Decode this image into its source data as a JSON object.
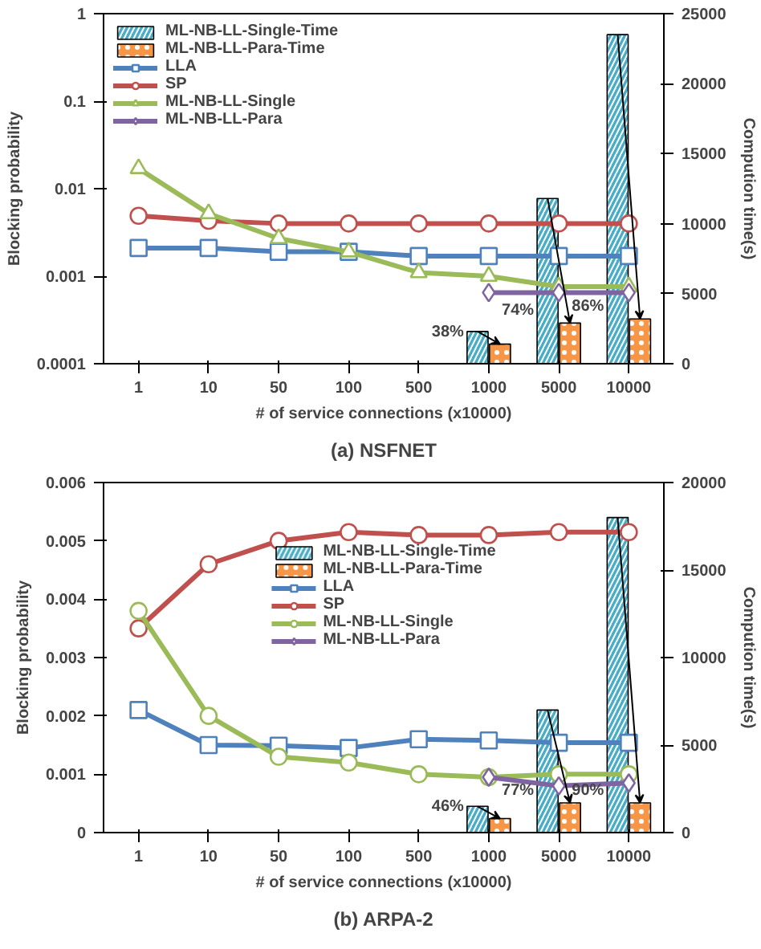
{
  "chart_data": [
    {
      "type": "line",
      "title": "(a) NSFNET",
      "xlabel": "# of service connections (x10000)",
      "ylabel": "Blocking probability",
      "y2label": "Compution time(s)",
      "categories": [
        "1",
        "10",
        "50",
        "100",
        "500",
        "1000",
        "5000",
        "10000"
      ],
      "log": "y",
      "ylim": [
        0.0001,
        1
      ],
      "yticks": [
        0.0001,
        0.001,
        0.01,
        0.1,
        1
      ],
      "y2lim": [
        0,
        25000
      ],
      "y2ticks": [
        0,
        5000,
        10000,
        15000,
        20000,
        25000
      ],
      "legend": "top left",
      "series": [
        {
          "name": "ML-NB-LL-Single-Time",
          "type": "bar",
          "axis": "y2",
          "color": "#4bacc6",
          "values": [
            null,
            null,
            null,
            null,
            null,
            2300,
            11800,
            23500
          ]
        },
        {
          "name": "ML-NB-LL-Para-Time",
          "type": "bar",
          "axis": "y2",
          "color": "#f79646",
          "values": [
            null,
            null,
            null,
            null,
            null,
            1400,
            2900,
            3200
          ]
        },
        {
          "name": "LLA",
          "marker": "square",
          "color": "#4f81bd",
          "values": [
            0.0021,
            0.0021,
            0.0019,
            0.0019,
            0.0017,
            0.0017,
            0.0017,
            0.0017
          ]
        },
        {
          "name": "SP",
          "marker": "circle",
          "color": "#c0504d",
          "values": [
            0.0049,
            0.0043,
            0.004,
            0.004,
            0.004,
            0.004,
            0.004,
            0.004
          ]
        },
        {
          "name": "ML-NB-LL-Single",
          "marker": "triangle",
          "color": "#9bbb59",
          "values": [
            0.017,
            0.0052,
            0.0027,
            0.0019,
            0.0011,
            0.001,
            0.00076,
            0.00076
          ]
        },
        {
          "name": "ML-NB-LL-Para",
          "marker": "diamond",
          "color": "#8064a2",
          "values": [
            null,
            null,
            null,
            null,
            null,
            0.00065,
            0.00065,
            0.00065
          ]
        }
      ],
      "annotations": [
        "38%",
        "74%",
        "86%"
      ]
    },
    {
      "type": "line",
      "title": "(b) ARPA-2",
      "xlabel": "# of service connections (x10000)",
      "ylabel": "Blocking probability",
      "y2label": "Compution time(s)",
      "categories": [
        "1",
        "10",
        "50",
        "100",
        "500",
        "1000",
        "5000",
        "10000"
      ],
      "ylim": [
        0,
        0.006
      ],
      "yticks": [
        0,
        0.001,
        0.002,
        0.003,
        0.004,
        0.005,
        0.006
      ],
      "y2lim": [
        0,
        20000
      ],
      "y2ticks": [
        0,
        5000,
        10000,
        15000,
        20000
      ],
      "legend": "top",
      "series": [
        {
          "name": "ML-NB-LL-Single-Time",
          "type": "bar",
          "axis": "y2",
          "color": "#4bacc6",
          "values": [
            null,
            null,
            null,
            null,
            null,
            1500,
            7000,
            18000
          ]
        },
        {
          "name": "ML-NB-LL-Para-Time",
          "type": "bar",
          "axis": "y2",
          "color": "#f79646",
          "values": [
            null,
            null,
            null,
            null,
            null,
            800,
            1700,
            1700
          ]
        },
        {
          "name": "LLA",
          "marker": "square",
          "color": "#4f81bd",
          "values": [
            0.0021,
            0.0015,
            0.00149,
            0.00145,
            0.0016,
            0.00158,
            0.00154,
            0.00154
          ]
        },
        {
          "name": "SP",
          "marker": "circle",
          "color": "#c0504d",
          "values": [
            0.0035,
            0.0046,
            0.005,
            0.00515,
            0.0051,
            0.0051,
            0.00515,
            0.00515
          ]
        },
        {
          "name": "ML-NB-LL-Single",
          "marker": "circle",
          "color": "#9bbb59",
          "values": [
            0.0038,
            0.002,
            0.0013,
            0.0012,
            0.001,
            0.00095,
            0.001,
            0.001
          ]
        },
        {
          "name": "ML-NB-LL-Para",
          "marker": "diamond",
          "color": "#8064a2",
          "values": [
            null,
            null,
            null,
            null,
            null,
            0.00095,
            0.0008,
            0.00085
          ]
        }
      ],
      "annotations": [
        "46%",
        "77%",
        "90%"
      ]
    }
  ]
}
